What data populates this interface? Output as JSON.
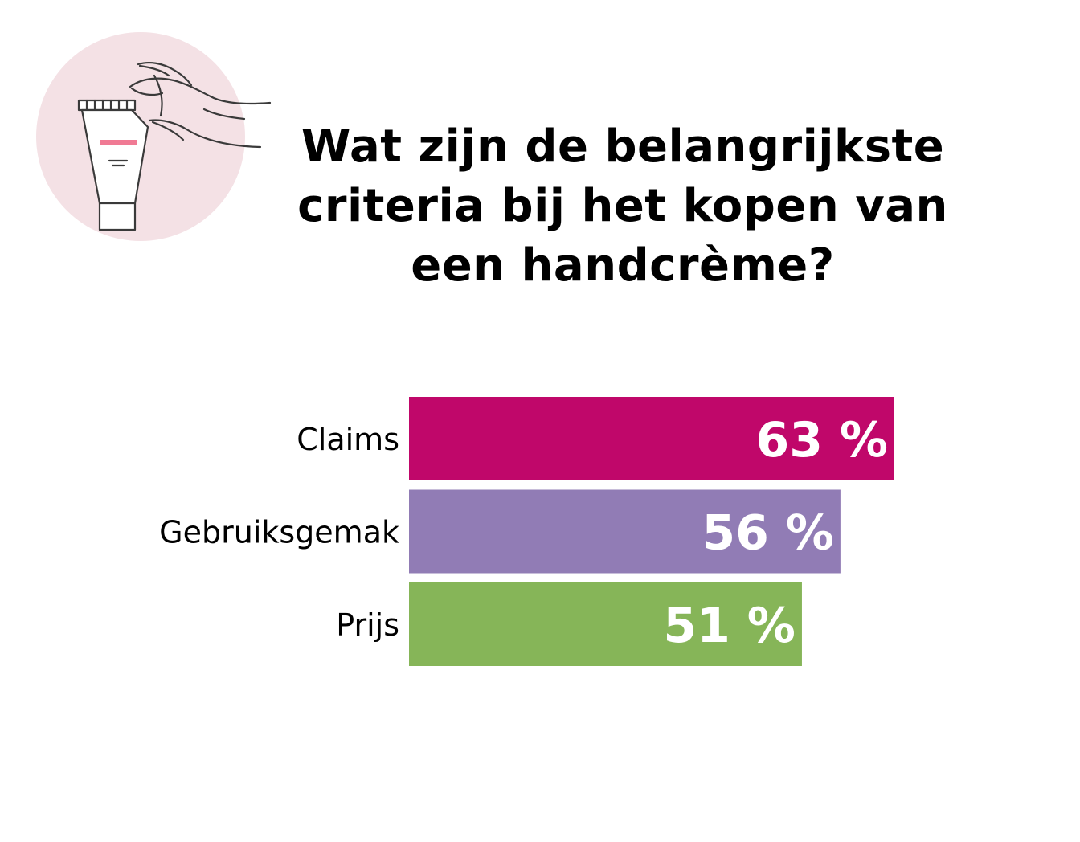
{
  "title": {
    "line1": "Wat zijn de belangrijkste",
    "line2": "criteria bij het kopen van",
    "line3": "een handcrème?"
  },
  "illustration": {
    "icon": "hand-cream-tube-icon",
    "circle_color": "#f4e1e5",
    "stripe_color": "#f07a94"
  },
  "chart_data": {
    "type": "bar",
    "orientation": "horizontal",
    "categories": [
      "Claims",
      "Gebruiksgemak",
      "Prijs"
    ],
    "values": [
      63,
      56,
      51
    ],
    "value_labels": [
      "63 %",
      "56 %",
      "51 %"
    ],
    "colors": [
      "#c0076a",
      "#917cb5",
      "#86b558"
    ],
    "xlim": [
      0,
      100
    ],
    "grid": false,
    "legend": "none"
  }
}
